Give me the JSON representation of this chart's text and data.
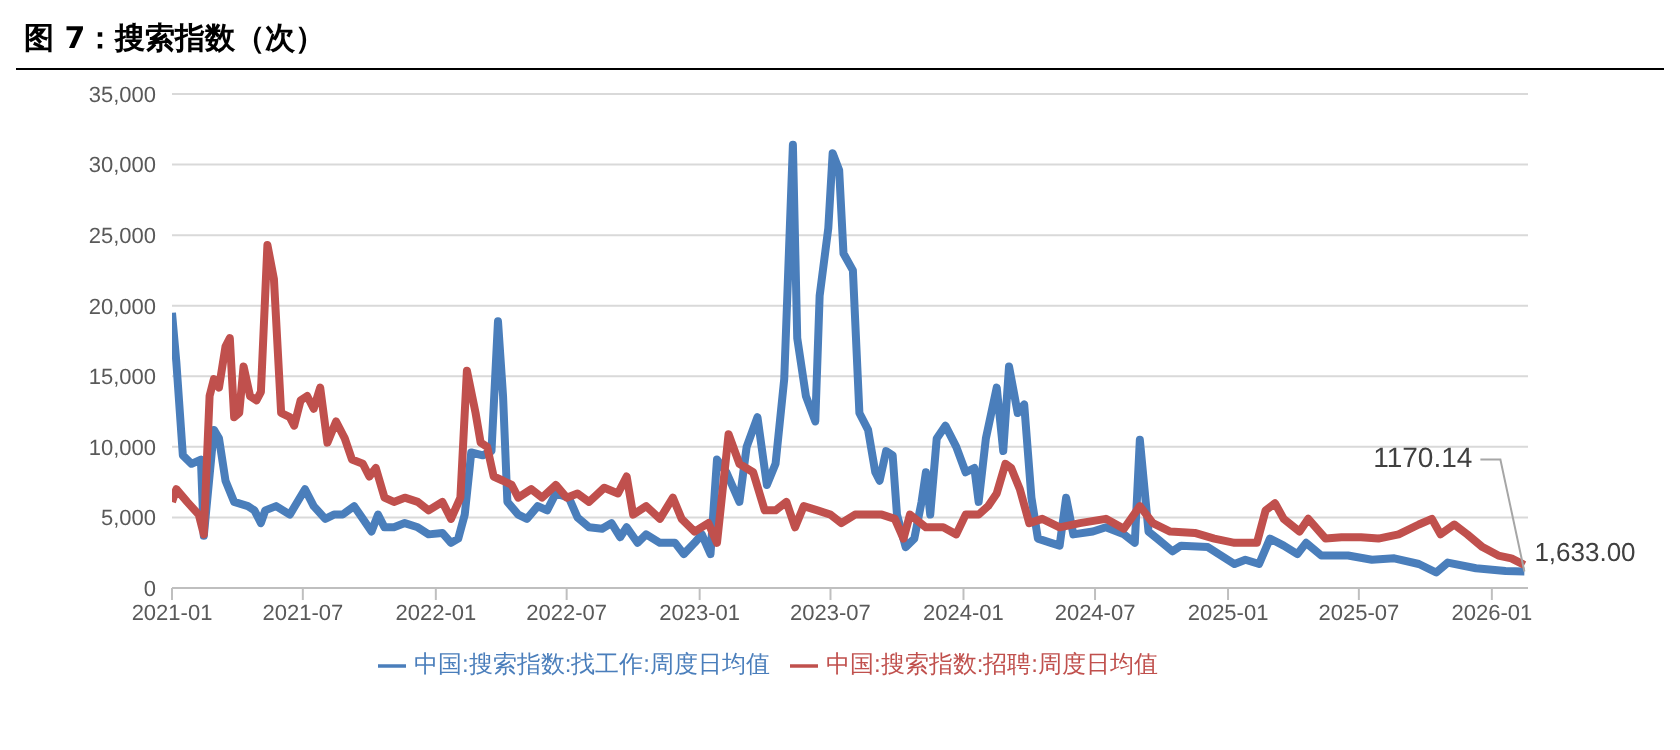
{
  "chart_data": {
    "type": "line",
    "title": "图 7：搜索指数（次）",
    "legend": "bottom",
    "grid": "y",
    "line_style": "solid",
    "marker": "none",
    "xlim": [
      "2021-01-01",
      "2026-02-20"
    ],
    "ylim": [
      0,
      35000
    ],
    "yticks": [
      {
        "value": 0,
        "label": "0"
      },
      {
        "value": 5000,
        "label": "5,000"
      },
      {
        "value": 10000,
        "label": "10,000"
      },
      {
        "value": 15000,
        "label": "15,000"
      },
      {
        "value": 20000,
        "label": "20,000"
      },
      {
        "value": 25000,
        "label": "25,000"
      },
      {
        "value": 30000,
        "label": "30,000"
      },
      {
        "value": 35000,
        "label": "35,000"
      }
    ],
    "xticks": [
      {
        "value": "2021-01-01",
        "label": "2021-01"
      },
      {
        "value": "2021-07-01",
        "label": "2021-07"
      },
      {
        "value": "2022-01-01",
        "label": "2022-01"
      },
      {
        "value": "2022-07-01",
        "label": "2022-07"
      },
      {
        "value": "2023-01-01",
        "label": "2023-01"
      },
      {
        "value": "2023-07-01",
        "label": "2023-07"
      },
      {
        "value": "2024-01-01",
        "label": "2024-01"
      },
      {
        "value": "2024-07-01",
        "label": "2024-07"
      },
      {
        "value": "2025-01-01",
        "label": "2025-01"
      },
      {
        "value": "2025-07-01",
        "label": "2025-07"
      },
      {
        "value": "2026-01-01",
        "label": "2026-01"
      }
    ],
    "series": [
      {
        "name": "中国:搜索指数:找工作:周度日均值",
        "color": "#4a7ebb",
        "x": [
          "2021-01-01",
          "2021-01-07",
          "2021-01-16",
          "2021-01-28",
          "2021-02-10",
          "2021-02-14",
          "2021-02-28",
          "2021-03-07",
          "2021-03-16",
          "2021-03-28",
          "2021-04-16",
          "2021-04-25",
          "2021-05-04",
          "2021-05-10",
          "2021-05-25",
          "2021-06-13",
          "2021-07-04",
          "2021-07-16",
          "2021-08-01",
          "2021-08-13",
          "2021-08-25",
          "2021-09-10",
          "2021-09-22",
          "2021-10-04",
          "2021-10-13",
          "2021-10-22",
          "2021-11-04",
          "2021-11-19",
          "2021-12-07",
          "2021-12-22",
          "2022-01-10",
          "2022-01-22",
          "2022-02-01",
          "2022-02-10",
          "2022-02-19",
          "2022-03-07",
          "2022-03-19",
          "2022-03-28",
          "2022-04-04",
          "2022-04-10",
          "2022-04-25",
          "2022-05-07",
          "2022-05-22",
          "2022-06-04",
          "2022-06-16",
          "2022-07-04",
          "2022-07-16",
          "2022-08-01",
          "2022-08-19",
          "2022-09-01",
          "2022-09-13",
          "2022-09-22",
          "2022-10-07",
          "2022-10-19",
          "2022-11-07",
          "2022-11-28",
          "2022-12-10",
          "2022-12-25",
          "2023-01-04",
          "2023-01-16",
          "2023-01-25",
          "2023-02-07",
          "2023-02-25",
          "2023-03-07",
          "2023-03-22",
          "2023-04-04",
          "2023-04-16",
          "2023-04-28",
          "2023-05-10",
          "2023-05-16",
          "2023-05-28",
          "2023-06-10",
          "2023-06-16",
          "2023-06-28",
          "2023-07-04",
          "2023-07-13",
          "2023-07-19",
          "2023-08-01",
          "2023-08-10",
          "2023-08-22",
          "2023-09-01",
          "2023-09-07",
          "2023-09-16",
          "2023-09-25",
          "2023-10-01",
          "2023-10-13",
          "2023-10-25",
          "2023-11-04",
          "2023-11-10",
          "2023-11-16",
          "2023-11-25",
          "2023-12-07",
          "2023-12-22",
          "2024-01-04",
          "2024-01-16",
          "2024-01-22",
          "2024-02-01",
          "2024-02-16",
          "2024-02-25",
          "2024-03-04",
          "2024-03-16",
          "2024-03-25",
          "2024-04-04",
          "2024-04-13",
          "2024-05-01",
          "2024-05-13",
          "2024-05-22",
          "2024-06-01",
          "2024-06-28",
          "2024-07-16",
          "2024-08-10",
          "2024-08-25",
          "2024-09-01",
          "2024-09-13",
          "2024-09-25",
          "2024-10-16",
          "2024-10-28",
          "2024-12-04",
          "2025-01-10",
          "2025-01-25",
          "2025-02-13",
          "2025-02-28",
          "2025-03-19",
          "2025-04-07",
          "2025-04-19",
          "2025-05-10",
          "2025-06-16",
          "2025-07-19",
          "2025-08-19",
          "2025-09-22",
          "2025-10-16",
          "2025-11-01",
          "2025-12-10",
          "2026-01-20",
          "2026-02-15"
        ],
        "values": [
          19500,
          16000,
          9400,
          8800,
          9100,
          3700,
          11200,
          10600,
          7600,
          6100,
          5800,
          5500,
          4600,
          5500,
          5800,
          5200,
          7000,
          5800,
          4900,
          5200,
          5200,
          5800,
          4900,
          4000,
          5200,
          4300,
          4300,
          4600,
          4300,
          3800,
          3900,
          3200,
          3500,
          5200,
          9600,
          9400,
          9700,
          18900,
          13600,
          6100,
          5200,
          4900,
          5800,
          5500,
          6700,
          6400,
          5000,
          4300,
          4200,
          4600,
          3600,
          4300,
          3200,
          3800,
          3200,
          3200,
          2400,
          3200,
          3800,
          2400,
          9100,
          8200,
          6100,
          10000,
          12100,
          7300,
          8800,
          14800,
          31400,
          17700,
          13600,
          11800,
          20700,
          25500,
          30800,
          29600,
          23700,
          22500,
          12400,
          11200,
          8200,
          7600,
          9700,
          9400,
          5200,
          2900,
          3500,
          6100,
          8200,
          5200,
          10600,
          11500,
          10000,
          8200,
          8500,
          6100,
          10600,
          14200,
          9700,
          15700,
          12400,
          13000,
          6400,
          3500,
          3200,
          3000,
          6400,
          3800,
          4000,
          4300,
          3800,
          3200,
          10500,
          4000,
          3500,
          2600,
          3000,
          2900,
          1700,
          2000,
          1700,
          3500,
          3000,
          2400,
          3200,
          2300,
          2300,
          2000,
          2100,
          1700,
          1100,
          1800,
          1400,
          1200,
          1170.14
        ],
        "value_labels": [
          null,
          null,
          null,
          null,
          null,
          null,
          null,
          null,
          null,
          null,
          null,
          null,
          null,
          null,
          null,
          null,
          null,
          null,
          null,
          null,
          null,
          null,
          null,
          null,
          null,
          null,
          null,
          null,
          null,
          null,
          null,
          null,
          null,
          null,
          null,
          null,
          null,
          null,
          null,
          null,
          null,
          null,
          null,
          null,
          null,
          null,
          null,
          null,
          null,
          null,
          null,
          null,
          null,
          null,
          null,
          null,
          null,
          null,
          null,
          null,
          null,
          null,
          null,
          null,
          null,
          null,
          null,
          null,
          null,
          null,
          null,
          null,
          null,
          null,
          null,
          null,
          null,
          null,
          null,
          null,
          null,
          null,
          null,
          null,
          null,
          null,
          null,
          null,
          null,
          null,
          null,
          null,
          null,
          null,
          null,
          null,
          null,
          null,
          null,
          null,
          null,
          null,
          null,
          null,
          null,
          null,
          null,
          null,
          null,
          null,
          null,
          null,
          null,
          null,
          null,
          null,
          null,
          null,
          null,
          null,
          null,
          null,
          null,
          null,
          null,
          null,
          null,
          null,
          null,
          null,
          null,
          null,
          null,
          null,
          "1170.14"
        ]
      },
      {
        "name": "中国:搜索指数:招聘:周度日均值",
        "color": "#c0504d",
        "x": [
          "2021-01-01",
          "2021-01-07",
          "2021-01-22",
          "2021-02-07",
          "2021-02-14",
          "2021-02-22",
          "2021-02-28",
          "2021-03-07",
          "2021-03-16",
          "2021-03-22",
          "2021-03-28",
          "2021-04-04",
          "2021-04-10",
          "2021-04-19",
          "2021-04-28",
          "2021-05-04",
          "2021-05-13",
          "2021-05-22",
          "2021-06-01",
          "2021-06-13",
          "2021-06-19",
          "2021-06-28",
          "2021-07-07",
          "2021-07-16",
          "2021-07-25",
          "2021-08-04",
          "2021-08-16",
          "2021-08-28",
          "2021-09-07",
          "2021-09-22",
          "2021-10-01",
          "2021-10-10",
          "2021-10-22",
          "2021-11-04",
          "2021-11-19",
          "2021-12-07",
          "2021-12-22",
          "2022-01-10",
          "2022-01-22",
          "2022-02-04",
          "2022-02-13",
          "2022-02-25",
          "2022-03-04",
          "2022-03-13",
          "2022-03-22",
          "2022-04-04",
          "2022-04-16",
          "2022-04-25",
          "2022-05-13",
          "2022-05-28",
          "2022-06-16",
          "2022-07-01",
          "2022-07-16",
          "2022-08-01",
          "2022-08-22",
          "2022-09-10",
          "2022-09-22",
          "2022-10-01",
          "2022-10-19",
          "2022-11-07",
          "2022-11-25",
          "2022-12-07",
          "2022-12-25",
          "2023-01-13",
          "2023-01-25",
          "2023-02-10",
          "2023-02-25",
          "2023-03-16",
          "2023-04-01",
          "2023-04-16",
          "2023-05-01",
          "2023-05-13",
          "2023-05-25",
          "2023-06-13",
          "2023-07-01",
          "2023-07-16",
          "2023-08-04",
          "2023-08-22",
          "2023-09-10",
          "2023-09-28",
          "2023-10-10",
          "2023-10-19",
          "2023-11-10",
          "2023-12-04",
          "2023-12-22",
          "2024-01-04",
          "2024-01-22",
          "2024-02-04",
          "2024-02-16",
          "2024-02-28",
          "2024-03-07",
          "2024-03-19",
          "2024-04-01",
          "2024-04-19",
          "2024-05-13",
          "2024-06-10",
          "2024-07-16",
          "2024-08-10",
          "2024-09-01",
          "2024-09-19",
          "2024-10-13",
          "2024-11-16",
          "2024-12-13",
          "2025-01-10",
          "2025-02-10",
          "2025-02-22",
          "2025-03-07",
          "2025-03-19",
          "2025-04-10",
          "2025-04-22",
          "2025-05-16",
          "2025-06-07",
          "2025-07-04",
          "2025-07-28",
          "2025-08-25",
          "2025-09-22",
          "2025-10-10",
          "2025-10-22",
          "2025-11-10",
          "2025-11-28",
          "2025-12-19",
          "2026-01-10",
          "2026-01-28",
          "2026-02-15"
        ],
        "values": [
          6100,
          7000,
          6100,
          5200,
          3800,
          13600,
          14800,
          14200,
          17100,
          17700,
          12100,
          12400,
          15700,
          13600,
          13300,
          13900,
          24300,
          21900,
          12400,
          12100,
          11500,
          13300,
          13600,
          12700,
          14200,
          10300,
          11800,
          10600,
          9100,
          8800,
          7900,
          8500,
          6400,
          6100,
          6400,
          6100,
          5500,
          6100,
          4900,
          6400,
          15400,
          12400,
          10300,
          10000,
          7900,
          7600,
          7300,
          6400,
          7000,
          6400,
          7300,
          6400,
          6700,
          6100,
          7100,
          6700,
          7900,
          5200,
          5800,
          4900,
          6400,
          4900,
          4000,
          4600,
          3200,
          10900,
          8800,
          8200,
          5500,
          5500,
          6100,
          4300,
          5800,
          5500,
          5200,
          4600,
          5200,
          5200,
          5200,
          4900,
          3500,
          5200,
          4300,
          4300,
          3800,
          5200,
          5200,
          5800,
          6700,
          8800,
          8500,
          7000,
          4600,
          4900,
          4300,
          4600,
          4900,
          4200,
          5800,
          4600,
          4000,
          3900,
          3500,
          3200,
          3200,
          5500,
          6000,
          4900,
          4000,
          4900,
          3500,
          3600,
          3600,
          3500,
          3800,
          4500,
          4900,
          3800,
          4500,
          3800,
          2900,
          2300,
          2100,
          1633
        ],
        "value_labels": [
          null,
          null,
          null,
          null,
          null,
          null,
          null,
          null,
          null,
          null,
          null,
          null,
          null,
          null,
          null,
          null,
          null,
          null,
          null,
          null,
          null,
          null,
          null,
          null,
          null,
          null,
          null,
          null,
          null,
          null,
          null,
          null,
          null,
          null,
          null,
          null,
          null,
          null,
          null,
          null,
          null,
          null,
          null,
          null,
          null,
          null,
          null,
          null,
          null,
          null,
          null,
          null,
          null,
          null,
          null,
          null,
          null,
          null,
          null,
          null,
          null,
          null,
          null,
          null,
          null,
          null,
          null,
          null,
          null,
          null,
          null,
          null,
          null,
          null,
          null,
          null,
          null,
          null,
          null,
          null,
          null,
          null,
          null,
          null,
          null,
          null,
          null,
          null,
          null,
          null,
          null,
          null,
          null,
          null,
          null,
          null,
          null,
          null,
          null,
          null,
          null,
          null,
          null,
          null,
          null,
          null,
          null,
          null,
          null,
          null,
          null,
          null,
          null,
          null,
          null,
          null,
          null,
          null,
          null,
          null,
          null,
          null,
          null,
          "1,633.00"
        ]
      }
    ]
  }
}
